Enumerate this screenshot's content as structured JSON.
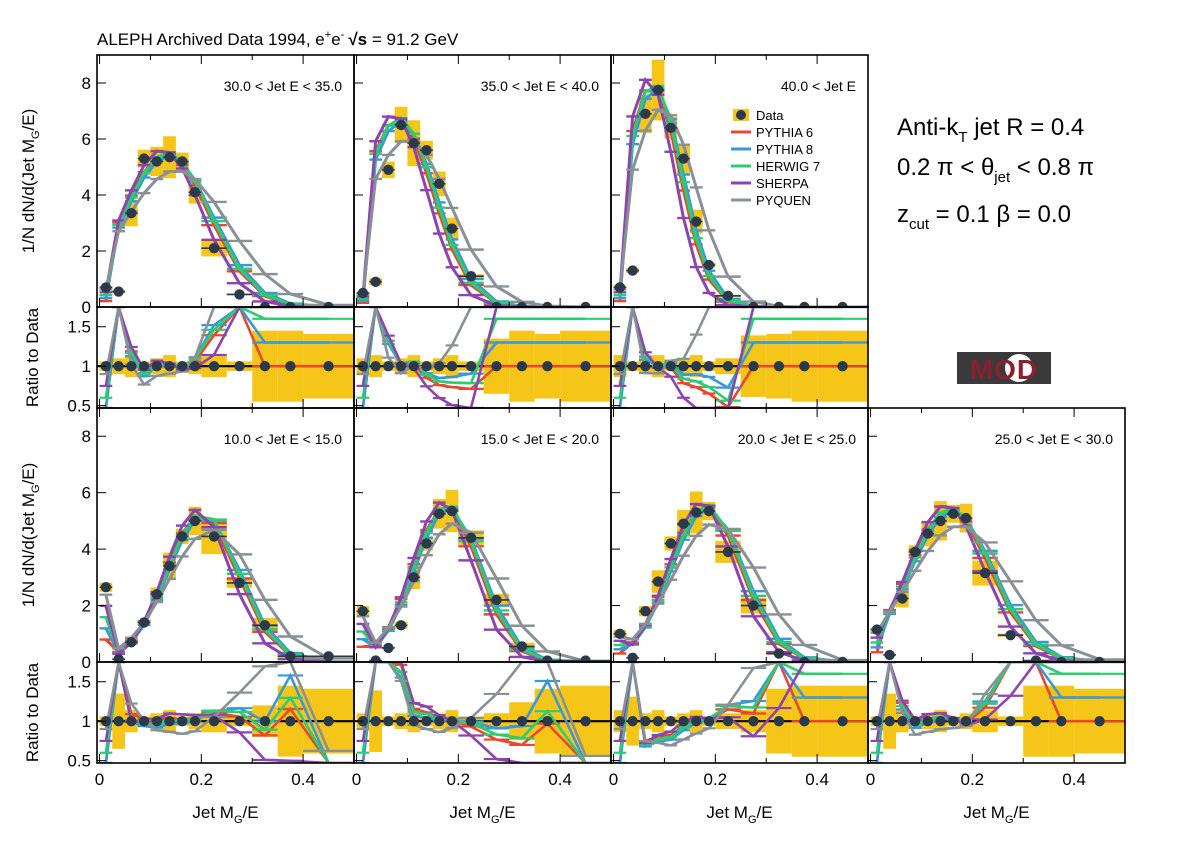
{
  "figure": {
    "title_main": "ALEPH Archived Data 1994, e",
    "title_sup1": "+",
    "title_mid": "e",
    "title_sup2": "-",
    "title_sqrt": "√s",
    "title_energy": " = 91.2 GeV",
    "annotation_line1_a": "Anti-k",
    "annotation_line1_sub": "T",
    "annotation_line1_b": " jet R = 0.4",
    "annotation_line2_a": "0.2 π < θ",
    "annotation_line2_sub": "jet",
    "annotation_line2_b": " < 0.8 π",
    "annotation_line3_a": "z",
    "annotation_line3_sub": "cut",
    "annotation_line3_b": " = 0.1 β = 0.0",
    "logo_text": "MOD"
  },
  "colors": {
    "data_marker": "#2b3a4a",
    "band": "#f5c518",
    "PYTHIA 6": "#e8482d",
    "PYTHIA 8": "#3a98d8",
    "HERWIG 7": "#2ecc71",
    "SHERPA": "#8e44ad",
    "PYQUEN": "#8a9196"
  },
  "chart_data": {
    "type": "line",
    "xlabel_main": "Jet M",
    "xlabel_sub": "G",
    "xlabel_tail": "/E",
    "ylabel_main": "1/N dN/d(Jet M",
    "ylabel_sub": "G",
    "ylabel_tail": "/E)",
    "ratio_ylabel": "Ratio to Data",
    "xlim": [
      -0.005,
      0.5
    ],
    "ylim": [
      0,
      9
    ],
    "ratio_ylim": [
      0.47,
      1.75
    ],
    "x_ticks": [
      "0",
      "0.2",
      "0.4"
    ],
    "y_ticks": [
      "0",
      "2",
      "4",
      "6",
      "8"
    ],
    "ratio_ticks": [
      "0.5",
      "1",
      "1.5"
    ],
    "legend": [
      "Data",
      "PYTHIA 6",
      "PYTHIA 8",
      "HERWIG 7",
      "SHERPA",
      "PYQUEN"
    ],
    "panels": [
      {
        "label": "30.0 < Jet E < 35.0",
        "peak": 0.13,
        "width": 0.085,
        "height": 5.3,
        "ydata": [
          0.7,
          0.55,
          3.35,
          5.3,
          5.2,
          5.35,
          5.2,
          4.1,
          2.1,
          0.45,
          0.0,
          0.0,
          0.0
        ]
      },
      {
        "label": "35.0 < Jet E < 40.0",
        "peak": 0.08,
        "width": 0.07,
        "height": 6.5,
        "ydata": [
          0.5,
          0.9,
          4.9,
          6.5,
          5.85,
          5.6,
          4.4,
          2.8,
          1.1,
          0.0,
          0.0,
          0.0,
          0.0
        ]
      },
      {
        "label": "40.0 < Jet E",
        "peak": 0.075,
        "width": 0.055,
        "height": 7.7,
        "ydata": [
          0.7,
          1.3,
          6.9,
          7.75,
          6.4,
          5.3,
          3.05,
          1.5,
          0.4,
          0.0,
          0.0,
          0.0,
          0.0
        ]
      },
      {
        "label": "10.0 < Jet E < 15.0",
        "peak": 0.2,
        "width": 0.07,
        "height": 5.1,
        "ydata": [
          2.65,
          0.1,
          0.7,
          1.4,
          2.4,
          3.4,
          4.45,
          5.0,
          4.45,
          2.8,
          1.3,
          0.2,
          0.2
        ]
      },
      {
        "label": "15.0 < Jet E < 20.0",
        "peak": 0.175,
        "width": 0.065,
        "height": 5.35,
        "ydata": [
          1.8,
          0.05,
          0.5,
          1.3,
          3.0,
          4.2,
          5.25,
          5.35,
          4.4,
          2.2,
          0.55,
          0.05,
          0.05
        ]
      },
      {
        "label": "20.0 < Jet E < 25.0",
        "peak": 0.18,
        "width": 0.07,
        "height": 5.35,
        "ydata": [
          1.0,
          0.15,
          1.8,
          2.85,
          4.2,
          4.9,
          5.3,
          5.35,
          3.9,
          2.0,
          0.3,
          0.0,
          0.0
        ]
      },
      {
        "label": "25.0 < Jet E < 30.0",
        "peak": 0.155,
        "width": 0.08,
        "height": 5.25,
        "ydata": [
          1.15,
          0.25,
          2.25,
          3.9,
          4.55,
          5.0,
          5.25,
          5.1,
          3.15,
          0.95,
          0.05,
          0.0,
          0.0
        ]
      }
    ]
  }
}
